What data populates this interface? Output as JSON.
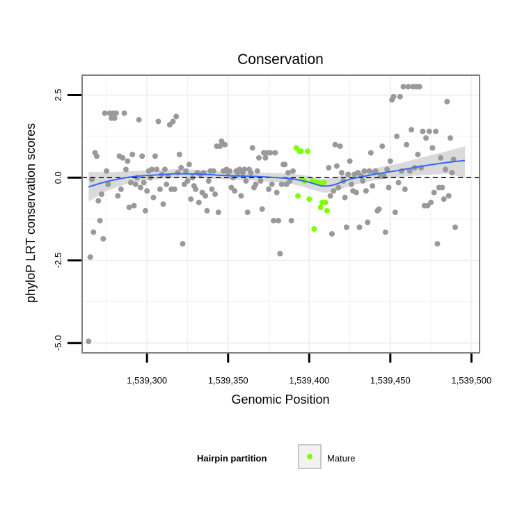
{
  "chart_data": {
    "type": "scatter",
    "title": "Conservation",
    "xlabel": "Genomic Position",
    "ylabel": "phyloP LRT conservation scores",
    "xlim": [
      1539260,
      1539505
    ],
    "ylim": [
      -5.3,
      3.1
    ],
    "x_ticks": [
      1539300,
      1539350,
      1539400,
      1539450,
      1539500
    ],
    "x_tick_labels": [
      "1,539,300",
      "1,539,350",
      "1,539,400",
      "1,539,450",
      "1,539,500"
    ],
    "y_ticks": [
      2.5,
      0.0,
      -2.5,
      -5.0
    ],
    "y_tick_labels": [
      "2.5",
      "0.0",
      "-2.5",
      "-5.0"
    ],
    "reference_line_y": 0,
    "grid": true,
    "legend": {
      "title": "Hairpin partition",
      "position": "bottom",
      "entries": [
        {
          "label": "Mature",
          "color": "#7fff00"
        }
      ]
    },
    "colors": {
      "points": "#999999",
      "mature": "#7fff00",
      "smooth_line": "#3366ff",
      "ribbon": "#d3d3d3",
      "panel_border": "#808080",
      "grid": "#f0f0f0"
    },
    "series": [
      {
        "name": "Other",
        "color": "#999999",
        "points": [
          [
            1539264,
            -4.95
          ],
          [
            1539265,
            -2.4
          ],
          [
            1539266,
            -0.05
          ],
          [
            1539267,
            -1.65
          ],
          [
            1539268,
            0.75
          ],
          [
            1539269,
            0.65
          ],
          [
            1539270,
            -0.7
          ],
          [
            1539271,
            -1.3
          ],
          [
            1539272,
            -0.5
          ],
          [
            1539273,
            -1.85
          ],
          [
            1539274,
            1.95
          ],
          [
            1539275,
            0.2
          ],
          [
            1539276,
            -0.2
          ],
          [
            1539277,
            1.95
          ],
          [
            1539278,
            1.8
          ],
          [
            1539279,
            1.95
          ],
          [
            1539280,
            1.8
          ],
          [
            1539281,
            1.95
          ],
          [
            1539282,
            -0.55
          ],
          [
            1539283,
            0.65
          ],
          [
            1539284,
            -0.35
          ],
          [
            1539285,
            0.6
          ],
          [
            1539286,
            1.95
          ],
          [
            1539287,
            0.25
          ],
          [
            1539288,
            0.5
          ],
          [
            1539289,
            -0.9
          ],
          [
            1539290,
            -0.15
          ],
          [
            1539291,
            0.7
          ],
          [
            1539292,
            -0.85
          ],
          [
            1539293,
            -0.2
          ],
          [
            1539294,
            0.0
          ],
          [
            1539295,
            1.75
          ],
          [
            1539296,
            -0.3
          ],
          [
            1539297,
            0.65
          ],
          [
            1539298,
            -0.15
          ],
          [
            1539299,
            -1.0
          ],
          [
            1539300,
            -0.4
          ],
          [
            1539301,
            0.2
          ],
          [
            1539302,
            0.0
          ],
          [
            1539303,
            0.25
          ],
          [
            1539304,
            -0.6
          ],
          [
            1539305,
            0.65
          ],
          [
            1539306,
            0.25
          ],
          [
            1539307,
            1.7
          ],
          [
            1539308,
            -0.35
          ],
          [
            1539309,
            0.1
          ],
          [
            1539310,
            -0.8
          ],
          [
            1539311,
            0.25
          ],
          [
            1539312,
            -0.2
          ],
          [
            1539313,
            0.05
          ],
          [
            1539314,
            1.6
          ],
          [
            1539315,
            -0.35
          ],
          [
            1539316,
            1.7
          ],
          [
            1539317,
            -0.35
          ],
          [
            1539318,
            1.85
          ],
          [
            1539319,
            0.15
          ],
          [
            1539320,
            0.7
          ],
          [
            1539321,
            0.3
          ],
          [
            1539322,
            -2.0
          ],
          [
            1539323,
            -0.2
          ],
          [
            1539324,
            0.2
          ],
          [
            1539325,
            -0.1
          ],
          [
            1539326,
            0.4
          ],
          [
            1539327,
            -0.65
          ],
          [
            1539328,
            0.0
          ],
          [
            1539329,
            -0.25
          ],
          [
            1539330,
            -0.35
          ],
          [
            1539331,
            0.15
          ],
          [
            1539332,
            -0.75
          ],
          [
            1539333,
            0.1
          ],
          [
            1539334,
            -0.45
          ],
          [
            1539335,
            0.15
          ],
          [
            1539336,
            -0.55
          ],
          [
            1539337,
            -1.0
          ],
          [
            1539338,
            -0.1
          ],
          [
            1539339,
            0.2
          ],
          [
            1539340,
            -0.35
          ],
          [
            1539341,
            0.2
          ],
          [
            1539342,
            -0.5
          ],
          [
            1539343,
            0.95
          ],
          [
            1539344,
            -1.05
          ],
          [
            1539345,
            0.95
          ],
          [
            1539346,
            1.1
          ],
          [
            1539347,
            0.2
          ],
          [
            1539348,
            1.0
          ],
          [
            1539349,
            0.25
          ],
          [
            1539350,
            0.15
          ],
          [
            1539351,
            0.2
          ],
          [
            1539352,
            -0.3
          ],
          [
            1539353,
            0.0
          ],
          [
            1539354,
            -0.4
          ],
          [
            1539355,
            0.2
          ],
          [
            1539356,
            0.15
          ],
          [
            1539357,
            0.25
          ],
          [
            1539358,
            -0.55
          ],
          [
            1539359,
            0.15
          ],
          [
            1539360,
            0.25
          ],
          [
            1539361,
            -0.1
          ],
          [
            1539362,
            -1.05
          ],
          [
            1539363,
            0.25
          ],
          [
            1539364,
            0.15
          ],
          [
            1539365,
            0.9
          ],
          [
            1539366,
            -0.3
          ],
          [
            1539367,
            -0.2
          ],
          [
            1539368,
            0.2
          ],
          [
            1539369,
            0.6
          ],
          [
            1539370,
            -0.1
          ],
          [
            1539371,
            -0.95
          ],
          [
            1539372,
            0.75
          ],
          [
            1539373,
            0.6
          ],
          [
            1539374,
            0.75
          ],
          [
            1539375,
            -0.35
          ],
          [
            1539376,
            0.75
          ],
          [
            1539377,
            -0.2
          ],
          [
            1539378,
            -1.3
          ],
          [
            1539379,
            0.75
          ],
          [
            1539380,
            -0.45
          ],
          [
            1539381,
            -1.3
          ],
          [
            1539382,
            -2.3
          ],
          [
            1539383,
            -0.2
          ],
          [
            1539384,
            0.4
          ],
          [
            1539385,
            0.4
          ],
          [
            1539386,
            -0.2
          ],
          [
            1539387,
            0.15
          ],
          [
            1539388,
            -0.1
          ],
          [
            1539389,
            -1.3
          ],
          [
            1539390,
            0.2
          ],
          [
            1539412,
            0.3
          ],
          [
            1539413,
            -0.55
          ],
          [
            1539414,
            -1.7
          ],
          [
            1539415,
            -0.4
          ],
          [
            1539416,
            1.0
          ],
          [
            1539417,
            0.35
          ],
          [
            1539418,
            -0.3
          ],
          [
            1539419,
            0.95
          ],
          [
            1539420,
            0.15
          ],
          [
            1539421,
            -0.1
          ],
          [
            1539422,
            -0.6
          ],
          [
            1539423,
            -1.5
          ],
          [
            1539424,
            0.1
          ],
          [
            1539425,
            0.5
          ],
          [
            1539426,
            -0.2
          ],
          [
            1539427,
            -0.4
          ],
          [
            1539428,
            0.1
          ],
          [
            1539429,
            -0.45
          ],
          [
            1539430,
            0.15
          ],
          [
            1539431,
            -1.5
          ],
          [
            1539432,
            0.05
          ],
          [
            1539433,
            -0.1
          ],
          [
            1539434,
            0.2
          ],
          [
            1539435,
            -0.4
          ],
          [
            1539436,
            -1.35
          ],
          [
            1539437,
            0.2
          ],
          [
            1539438,
            0.75
          ],
          [
            1539439,
            -0.25
          ],
          [
            1539440,
            0.15
          ],
          [
            1539441,
            0.2
          ],
          [
            1539442,
            -1.0
          ],
          [
            1539443,
            -0.95
          ],
          [
            1539444,
            0.05
          ],
          [
            1539445,
            0.95
          ],
          [
            1539446,
            0.05
          ],
          [
            1539447,
            -1.65
          ],
          [
            1539448,
            0.25
          ],
          [
            1539449,
            -0.3
          ],
          [
            1539450,
            0.5
          ],
          [
            1539451,
            2.35
          ],
          [
            1539452,
            2.45
          ],
          [
            1539453,
            -1.05
          ],
          [
            1539454,
            1.25
          ],
          [
            1539455,
            -0.15
          ],
          [
            1539456,
            2.45
          ],
          [
            1539457,
            0.2
          ],
          [
            1539458,
            2.75
          ],
          [
            1539459,
            -0.35
          ],
          [
            1539460,
            1.0
          ],
          [
            1539461,
            2.75
          ],
          [
            1539462,
            0.2
          ],
          [
            1539463,
            1.45
          ],
          [
            1539464,
            2.75
          ],
          [
            1539465,
            0.3
          ],
          [
            1539466,
            2.75
          ],
          [
            1539467,
            0.7
          ],
          [
            1539468,
            2.75
          ],
          [
            1539469,
            0.3
          ],
          [
            1539470,
            1.4
          ],
          [
            1539471,
            -0.85
          ],
          [
            1539472,
            1.2
          ],
          [
            1539473,
            -0.85
          ],
          [
            1539474,
            1.4
          ],
          [
            1539475,
            -0.75
          ],
          [
            1539476,
            0.9
          ],
          [
            1539477,
            -0.45
          ],
          [
            1539478,
            1.4
          ],
          [
            1539479,
            -2.0
          ],
          [
            1539480,
            -0.3
          ],
          [
            1539481,
            0.6
          ],
          [
            1539482,
            -0.3
          ],
          [
            1539483,
            -0.65
          ],
          [
            1539484,
            0.25
          ],
          [
            1539485,
            2.3
          ],
          [
            1539486,
            -0.55
          ],
          [
            1539487,
            1.2
          ],
          [
            1539488,
            0.15
          ],
          [
            1539489,
            0.55
          ],
          [
            1539490,
            -1.5
          ]
        ]
      },
      {
        "name": "Mature",
        "color": "#7fff00",
        "points": [
          [
            1539392,
            0.9
          ],
          [
            1539393,
            -0.55
          ],
          [
            1539394,
            0.8
          ],
          [
            1539395,
            0.8
          ],
          [
            1539396,
            -0.05
          ],
          [
            1539397,
            -0.1
          ],
          [
            1539399,
            0.8
          ],
          [
            1539400,
            -0.65
          ],
          [
            1539402,
            -0.1
          ],
          [
            1539403,
            -1.55
          ],
          [
            1539404,
            -0.15
          ],
          [
            1539406,
            -0.15
          ],
          [
            1539407,
            -0.9
          ],
          [
            1539408,
            -0.75
          ],
          [
            1539409,
            -0.15
          ],
          [
            1539410,
            -0.75
          ],
          [
            1539411,
            -1.0
          ]
        ]
      }
    ],
    "smooth": {
      "x": [
        1539264,
        1539275,
        1539290,
        1539305,
        1539320,
        1539335,
        1539350,
        1539365,
        1539380,
        1539390,
        1539400,
        1539408,
        1539415,
        1539425,
        1539440,
        1539455,
        1539470,
        1539485,
        1539496
      ],
      "y": [
        -0.28,
        -0.12,
        0.02,
        0.08,
        0.12,
        0.1,
        0.06,
        0.04,
        0.0,
        -0.04,
        -0.14,
        -0.25,
        -0.22,
        -0.05,
        0.1,
        0.22,
        0.35,
        0.46,
        0.52
      ],
      "lower": [
        -0.72,
        -0.4,
        -0.15,
        -0.05,
        0.0,
        -0.02,
        -0.06,
        -0.08,
        -0.14,
        -0.2,
        -0.33,
        -0.45,
        -0.44,
        -0.25,
        -0.08,
        0.02,
        0.08,
        0.12,
        0.0
      ],
      "upper": [
        0.18,
        0.16,
        0.2,
        0.22,
        0.26,
        0.22,
        0.18,
        0.16,
        0.14,
        0.12,
        0.05,
        -0.05,
        0.0,
        0.14,
        0.28,
        0.42,
        0.62,
        0.8,
        0.95
      ]
    }
  }
}
